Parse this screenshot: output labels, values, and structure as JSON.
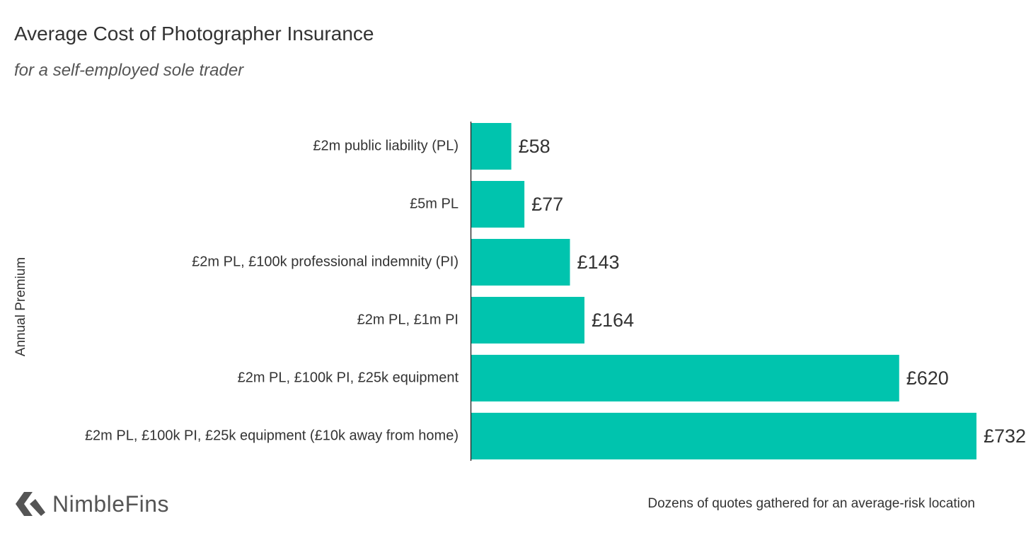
{
  "chart_data": {
    "type": "bar",
    "orientation": "horizontal",
    "title": "Average Cost of Photographer Insurance",
    "subtitle": "for a self-employed sole trader",
    "ylabel": "Annual Premium",
    "xlabel": "",
    "categories": [
      "£2m public liability (PL)",
      "£5m PL",
      "£2m PL, £100k professional indemnity (PI)",
      "£2m PL, £1m PI",
      "£2m PL, £100k PI, £25k equipment",
      "£2m PL, £100k PI, £25k equipment (£10k away from home)"
    ],
    "values": [
      58,
      77,
      143,
      164,
      620,
      732
    ],
    "value_labels": [
      "£58",
      "£77",
      "£143",
      "£164",
      "£620",
      "£732"
    ],
    "xlim": [
      0,
      732
    ],
    "grid": false,
    "bar_color": "#00c4ae"
  },
  "brand": {
    "name": "NimbleFins",
    "logo_icon": "arrow-chevron-icon",
    "color": "#555555"
  },
  "footnote": "Dozens of quotes gathered for an average-risk location"
}
